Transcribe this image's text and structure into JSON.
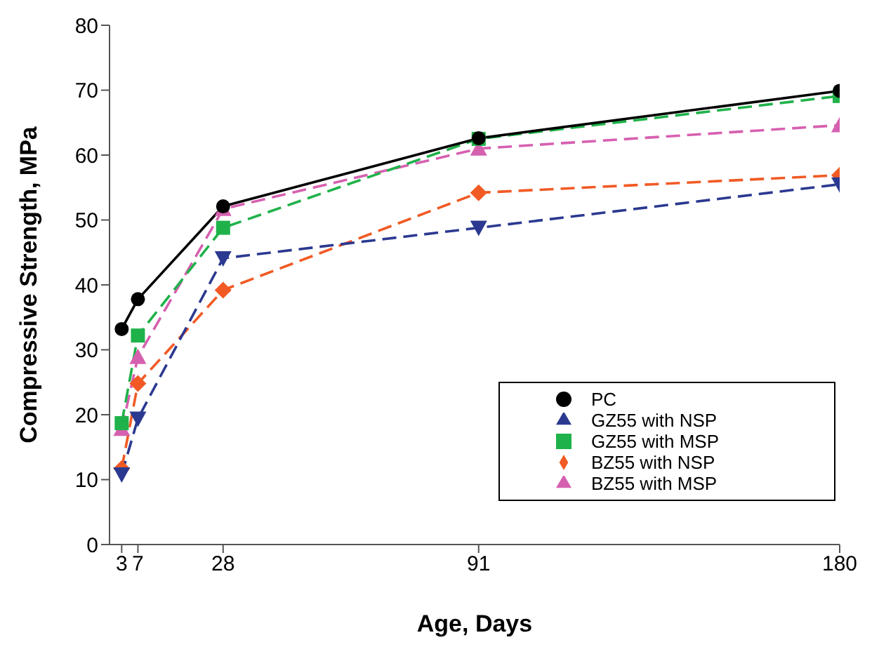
{
  "chart_data": {
    "type": "line",
    "xlabel": "Age, Days",
    "ylabel": "Compressive Strength, MPa",
    "x": [
      3,
      7,
      28,
      91,
      180
    ],
    "series": [
      {
        "name": "PC",
        "color": "#000000",
        "values": [
          33.2,
          37.8,
          52.1,
          62.6,
          69.9
        ],
        "marker": "circle",
        "line_style": "solid"
      },
      {
        "name": "GZ55 with NSP",
        "color": "#2b3990",
        "values": [
          10.8,
          19.4,
          44.1,
          48.8,
          55.5
        ],
        "marker": "triangle-down",
        "line_style": "dashed"
      },
      {
        "name": "GZ55 with MSP",
        "color": "#1fb24a",
        "values": [
          18.7,
          32.2,
          48.8,
          62.5,
          69.1
        ],
        "marker": "square",
        "line_style": "dashed"
      },
      {
        "name": "BZ55 with NSP",
        "color": "#f15a24",
        "values": [
          11.7,
          24.8,
          39.2,
          54.2,
          56.9
        ],
        "marker": "diamond",
        "line_style": "dashed"
      },
      {
        "name": "BZ55 with MSP",
        "color": "#d660b0",
        "values": [
          17.8,
          28.9,
          51.7,
          61.0,
          64.6
        ],
        "marker": "triangle",
        "line_style": "dashed"
      }
    ],
    "xlim": [
      0,
      180
    ],
    "xticks": [
      3,
      7,
      28,
      91,
      180
    ],
    "ylim": [
      0,
      80
    ],
    "yticks": [
      0,
      10,
      20,
      30,
      40,
      50,
      60,
      70,
      80
    ],
    "grid": false,
    "legend": "bottom right"
  }
}
